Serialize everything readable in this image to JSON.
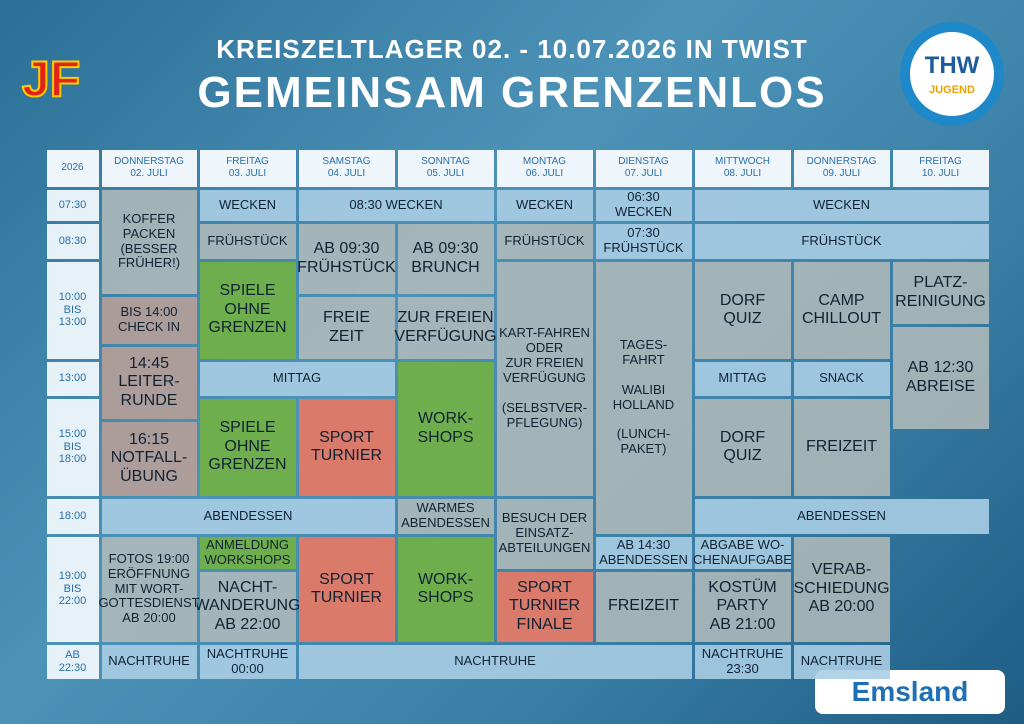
{
  "header": {
    "title": "KREISZELTLAGER 02. - 10.07.2026 IN TWIST",
    "subtitle": "GEMEINSAM GRENZENLOS",
    "logo_left": "JF",
    "logo_right": "THW",
    "logo_right_sub": "JUGEND",
    "sponsor": "Emsland"
  },
  "table": {
    "corner": "2026",
    "columns": [
      {
        "day": "DONNERSTAG",
        "date": "02. JULI"
      },
      {
        "day": "FREITAG",
        "date": "03. JULI"
      },
      {
        "day": "SAMSTAG",
        "date": "04. JULI"
      },
      {
        "day": "SONNTAG",
        "date": "05. JULI"
      },
      {
        "day": "MONTAG",
        "date": "06. JULI"
      },
      {
        "day": "DIENSTAG",
        "date": "07. JULI"
      },
      {
        "day": "MITTWOCH",
        "date": "08. JULI"
      },
      {
        "day": "DONNERSTAG",
        "date": "09. JULI"
      },
      {
        "day": "FREITAG",
        "date": "10. JULI"
      }
    ],
    "times": [
      "07:30",
      "08:30",
      "10:00\nBIS\n13:00",
      "13:00",
      "15:00\nBIS\n18:00",
      "18:00",
      "19:00\nBIS\n22:00",
      "AB\n22:30"
    ],
    "cells": [
      {
        "text": "KOFFER\nPACKEN\n(BESSER\nFRÜHER!)"
      },
      {
        "text": "BIS 14:00\nCHECK IN"
      },
      {
        "text": "14:45\nLEITER-\nRUNDE"
      },
      {
        "text": "16:15\nNOTFALL-\nÜBUNG"
      },
      {
        "text": "WECKEN"
      },
      {
        "text": "08:30 WECKEN"
      },
      {
        "text": "FRÜHSTÜCK"
      },
      {
        "text": "SPIELE\nOHNE\nGRENZEN"
      },
      {
        "text": "MITTAG"
      },
      {
        "text": "SPIELE\nOHNE\nGRENZEN"
      },
      {
        "text": "ABENDESSEN"
      },
      {
        "text": "ANMELDUNG\nWORKSHOPS"
      },
      {
        "text": "NACHT-\nWANDERUNG\nAB 22:00"
      },
      {
        "text": "NACHTRUHE\n00:00"
      },
      {
        "text": "AB 09:30\nFRÜHSTÜCK"
      },
      {
        "text": "FREIE\nZEIT"
      },
      {
        "text": "SPORT\nTURNIER"
      },
      {
        "text": "SPORT\nTURNIER"
      },
      {
        "text": "AB 09:30\nBRUNCH"
      },
      {
        "text": "ZUR FREIEN\nVERFÜGUNG"
      },
      {
        "text": "WORK-\nSHOPS"
      },
      {
        "text": "WARMES\nABENDESSEN"
      },
      {
        "text": "WORK-\nSHOPS"
      },
      {
        "text": "WECKEN"
      },
      {
        "text": "FRÜHSTÜCK"
      },
      {
        "text": "KART-FAHREN\nODER\nZUR FREIEN\nVERFÜGUNG\n\n(SELBSTVER-\nPFLEGUNG)"
      },
      {
        "text": "BESUCH DER\nEINSATZ-\nABTEILUNGEN"
      },
      {
        "text": "SPORT\nTURNIER\nFINALE"
      },
      {
        "text": "06:30\nWECKEN"
      },
      {
        "text": "07:30\nFRÜHSTÜCK"
      },
      {
        "text": "TAGES-\nFAHRT\n\nWALIBI\nHOLLAND\n\n(LUNCH-\nPAKET)"
      },
      {
        "text": "AB 14:30\nABENDESSEN"
      },
      {
        "text": "FREIZEIT"
      },
      {
        "text": "WECKEN"
      },
      {
        "text": "FRÜHSTÜCK"
      },
      {
        "text": "DORF\nQUIZ"
      },
      {
        "text": "MITTAG"
      },
      {
        "text": "DORF\nQUIZ"
      },
      {
        "text": "ABENDESSEN"
      },
      {
        "text": "ABGABE WO-\nCHENAUFGABE"
      },
      {
        "text": "KOSTÜM\nPARTY\nAB 21:00"
      },
      {
        "text": "NACHTRUHE\n23:30"
      },
      {
        "text": "CAMP\nCHILLOUT"
      },
      {
        "text": "SNACK"
      },
      {
        "text": "FREIZEIT"
      },
      {
        "text": "VERAB-\nSCHIEDUNG\nAB 20:00"
      },
      {
        "text": "NACHTRUHE"
      },
      {
        "text": "PLATZ-\nREINIGUNG"
      },
      {
        "text": "AB 12:30\nABREISE"
      },
      {
        "text": "FOTOS 19:00\nERÖFFNUNG\nMIT WORT-\nGOTTESDIENST\nAB 20:00"
      },
      {
        "text": "NACHTRUHE"
      },
      {
        "text": "NACHTRUHE"
      }
    ]
  }
}
